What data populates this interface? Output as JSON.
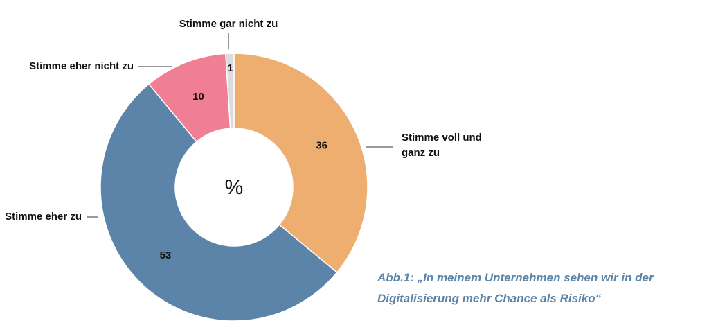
{
  "chart_data": {
    "type": "donut",
    "title": "Abb.1: „In meinem Unternehmen sehen wir in der Digitalisierung mehr Chance als Risiko“",
    "center_label": "%",
    "categories": [
      "Stimme voll und ganz zu",
      "Stimme eher zu",
      "Stimme eher nicht zu",
      "Stimme gar nicht zu"
    ],
    "values": [
      36,
      53,
      10,
      1
    ],
    "colors": [
      "#edae6f",
      "#5b84a8",
      "#f07f95",
      "#dcdcdc"
    ]
  }
}
